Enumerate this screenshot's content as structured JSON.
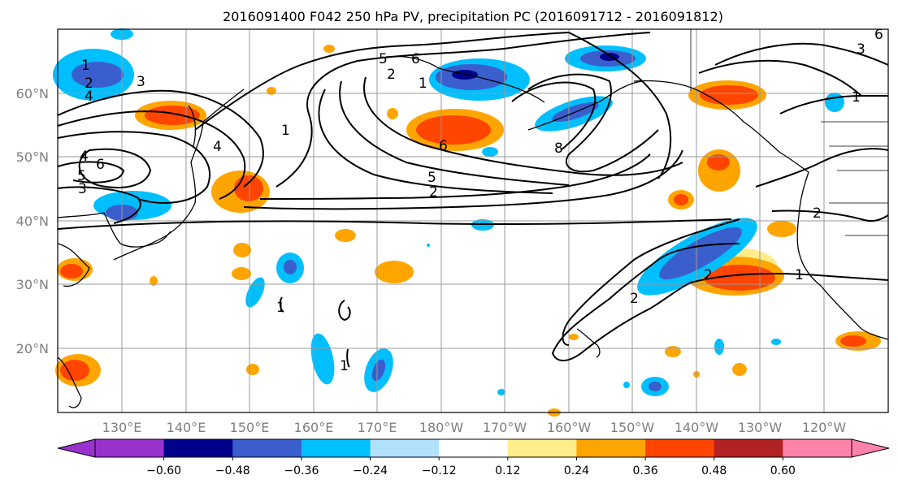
{
  "title": "2016091400 F042 250 hPa PV, precipitation PC (2016091712 - 2016091812)",
  "lat_ticks": [
    "60°N",
    "50°N",
    "40°N",
    "30°N",
    "20°N"
  ],
  "lon_ticks": [
    "130°E",
    "140°E",
    "150°E",
    "160°E",
    "170°E",
    "180°W",
    "170°W",
    "160°W",
    "150°W",
    "140°W",
    "130°W",
    "120°W"
  ],
  "colorbar": {
    "tick_labels": [
      "−0.60",
      "−0.48",
      "−0.36",
      "−0.24",
      "−0.12",
      "0.12",
      "0.24",
      "0.36",
      "0.48",
      "0.60"
    ],
    "colors": [
      "#9932CC",
      "#00008B",
      "#3A5FCD",
      "#00BFFF",
      "#B0E2FF",
      "#FFFFFF",
      "#FFEC8B",
      "#FFA500",
      "#FF4500",
      "#B22222",
      "#FF82AB"
    ]
  },
  "contour_labels": [
    "1",
    "2",
    "4",
    "6",
    "5",
    "4",
    "3",
    "5",
    "6",
    "2",
    "1",
    "3",
    "4",
    "6",
    "8",
    "5",
    "2",
    "1",
    "2",
    "6",
    "3",
    "1",
    "2",
    "1",
    "2",
    "1",
    "1"
  ],
  "colors": {
    "grid": "#999999",
    "land": "#000000",
    "contour": "#000000"
  }
}
